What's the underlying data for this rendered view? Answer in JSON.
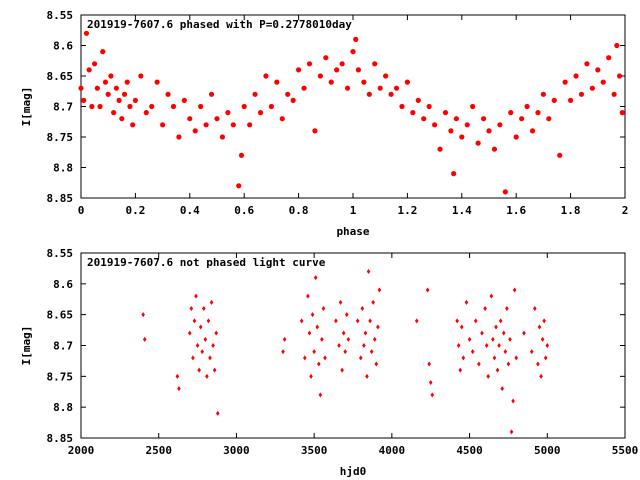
{
  "colors": {
    "points": "#ff0000",
    "axes": "#000000"
  },
  "chart_data": [
    {
      "type": "scatter",
      "title": "201919-7607.6 phased with P=0.2778010day",
      "xlabel": "phase",
      "ylabel": "I[mag]",
      "xlim": [
        0,
        2
      ],
      "ylim": [
        8.55,
        8.85
      ],
      "y_inverted": true,
      "xticks": [
        "0",
        "0.2",
        "0.4",
        "0.6",
        "0.8",
        "1",
        "1.2",
        "1.4",
        "1.6",
        "1.8",
        "2"
      ],
      "yticks": [
        "8.55",
        "8.6",
        "8.65",
        "8.7",
        "8.75",
        "8.8",
        "8.85"
      ],
      "grid": false,
      "marker": "filled-circle",
      "points": [
        [
          0.0,
          8.67
        ],
        [
          0.01,
          8.69
        ],
        [
          0.02,
          8.58
        ],
        [
          0.03,
          8.64
        ],
        [
          0.04,
          8.7
        ],
        [
          0.05,
          8.63
        ],
        [
          0.06,
          8.67
        ],
        [
          0.07,
          8.7
        ],
        [
          0.08,
          8.61
        ],
        [
          0.09,
          8.66
        ],
        [
          0.1,
          8.68
        ],
        [
          0.11,
          8.65
        ],
        [
          0.12,
          8.71
        ],
        [
          0.13,
          8.67
        ],
        [
          0.14,
          8.69
        ],
        [
          0.15,
          8.72
        ],
        [
          0.16,
          8.68
        ],
        [
          0.17,
          8.66
        ],
        [
          0.18,
          8.7
        ],
        [
          0.19,
          8.73
        ],
        [
          0.2,
          8.69
        ],
        [
          0.22,
          8.65
        ],
        [
          0.24,
          8.71
        ],
        [
          0.26,
          8.7
        ],
        [
          0.28,
          8.66
        ],
        [
          0.3,
          8.73
        ],
        [
          0.32,
          8.68
        ],
        [
          0.34,
          8.7
        ],
        [
          0.36,
          8.75
        ],
        [
          0.38,
          8.69
        ],
        [
          0.4,
          8.72
        ],
        [
          0.42,
          8.74
        ],
        [
          0.44,
          8.7
        ],
        [
          0.46,
          8.73
        ],
        [
          0.48,
          8.68
        ],
        [
          0.5,
          8.72
        ],
        [
          0.52,
          8.75
        ],
        [
          0.54,
          8.71
        ],
        [
          0.56,
          8.73
        ],
        [
          0.58,
          8.83
        ],
        [
          0.59,
          8.78
        ],
        [
          0.6,
          8.7
        ],
        [
          0.62,
          8.73
        ],
        [
          0.64,
          8.68
        ],
        [
          0.66,
          8.71
        ],
        [
          0.68,
          8.65
        ],
        [
          0.7,
          8.7
        ],
        [
          0.72,
          8.66
        ],
        [
          0.74,
          8.72
        ],
        [
          0.76,
          8.68
        ],
        [
          0.78,
          8.69
        ],
        [
          0.8,
          8.64
        ],
        [
          0.82,
          8.67
        ],
        [
          0.84,
          8.63
        ],
        [
          0.86,
          8.74
        ],
        [
          0.88,
          8.65
        ],
        [
          0.9,
          8.62
        ],
        [
          0.92,
          8.66
        ],
        [
          0.94,
          8.64
        ],
        [
          0.96,
          8.63
        ],
        [
          0.98,
          8.67
        ],
        [
          1.0,
          8.61
        ],
        [
          1.01,
          8.59
        ],
        [
          1.02,
          8.64
        ],
        [
          1.04,
          8.66
        ],
        [
          1.06,
          8.68
        ],
        [
          1.08,
          8.63
        ],
        [
          1.1,
          8.67
        ],
        [
          1.12,
          8.65
        ],
        [
          1.14,
          8.68
        ],
        [
          1.16,
          8.67
        ],
        [
          1.18,
          8.7
        ],
        [
          1.2,
          8.66
        ],
        [
          1.22,
          8.71
        ],
        [
          1.24,
          8.69
        ],
        [
          1.26,
          8.72
        ],
        [
          1.28,
          8.7
        ],
        [
          1.3,
          8.73
        ],
        [
          1.32,
          8.77
        ],
        [
          1.34,
          8.71
        ],
        [
          1.36,
          8.74
        ],
        [
          1.37,
          8.81
        ],
        [
          1.38,
          8.72
        ],
        [
          1.4,
          8.75
        ],
        [
          1.42,
          8.73
        ],
        [
          1.44,
          8.7
        ],
        [
          1.46,
          8.76
        ],
        [
          1.48,
          8.72
        ],
        [
          1.5,
          8.74
        ],
        [
          1.52,
          8.77
        ],
        [
          1.54,
          8.73
        ],
        [
          1.56,
          8.84
        ],
        [
          1.58,
          8.71
        ],
        [
          1.6,
          8.75
        ],
        [
          1.62,
          8.72
        ],
        [
          1.64,
          8.7
        ],
        [
          1.66,
          8.74
        ],
        [
          1.68,
          8.71
        ],
        [
          1.7,
          8.68
        ],
        [
          1.72,
          8.72
        ],
        [
          1.74,
          8.69
        ],
        [
          1.76,
          8.78
        ],
        [
          1.78,
          8.66
        ],
        [
          1.8,
          8.69
        ],
        [
          1.82,
          8.65
        ],
        [
          1.84,
          8.68
        ],
        [
          1.86,
          8.63
        ],
        [
          1.88,
          8.67
        ],
        [
          1.9,
          8.64
        ],
        [
          1.92,
          8.66
        ],
        [
          1.94,
          8.62
        ],
        [
          1.96,
          8.68
        ],
        [
          1.97,
          8.6
        ],
        [
          1.98,
          8.65
        ],
        [
          1.99,
          8.71
        ]
      ]
    },
    {
      "type": "scatter",
      "title": "201919-7607.6 not phased light curve",
      "xlabel": "hjd0",
      "ylabel": "I[mag]",
      "xlim": [
        2000,
        5500
      ],
      "ylim": [
        8.55,
        8.85
      ],
      "y_inverted": true,
      "xticks": [
        "2000",
        "2500",
        "3000",
        "3500",
        "4000",
        "4500",
        "5000",
        "5500"
      ],
      "yticks": [
        "8.55",
        "8.6",
        "8.65",
        "8.7",
        "8.75",
        "8.8",
        "8.85"
      ],
      "grid": false,
      "marker": "diamond",
      "points": [
        [
          2400,
          8.65
        ],
        [
          2410,
          8.69
        ],
        [
          2620,
          8.75
        ],
        [
          2630,
          8.77
        ],
        [
          2700,
          8.68
        ],
        [
          2710,
          8.64
        ],
        [
          2720,
          8.72
        ],
        [
          2730,
          8.66
        ],
        [
          2740,
          8.62
        ],
        [
          2750,
          8.7
        ],
        [
          2760,
          8.74
        ],
        [
          2770,
          8.67
        ],
        [
          2780,
          8.71
        ],
        [
          2790,
          8.64
        ],
        [
          2800,
          8.69
        ],
        [
          2810,
          8.75
        ],
        [
          2820,
          8.66
        ],
        [
          2830,
          8.72
        ],
        [
          2840,
          8.63
        ],
        [
          2850,
          8.7
        ],
        [
          2860,
          8.74
        ],
        [
          2870,
          8.68
        ],
        [
          2880,
          8.81
        ],
        [
          3300,
          8.71
        ],
        [
          3310,
          8.69
        ],
        [
          3420,
          8.66
        ],
        [
          3440,
          8.72
        ],
        [
          3460,
          8.62
        ],
        [
          3470,
          8.68
        ],
        [
          3480,
          8.75
        ],
        [
          3490,
          8.65
        ],
        [
          3500,
          8.71
        ],
        [
          3510,
          8.59
        ],
        [
          3520,
          8.67
        ],
        [
          3530,
          8.73
        ],
        [
          3540,
          8.78
        ],
        [
          3550,
          8.69
        ],
        [
          3560,
          8.64
        ],
        [
          3570,
          8.72
        ],
        [
          3640,
          8.66
        ],
        [
          3660,
          8.7
        ],
        [
          3670,
          8.63
        ],
        [
          3680,
          8.74
        ],
        [
          3690,
          8.68
        ],
        [
          3700,
          8.71
        ],
        [
          3710,
          8.65
        ],
        [
          3720,
          8.69
        ],
        [
          3780,
          8.66
        ],
        [
          3800,
          8.72
        ],
        [
          3810,
          8.64
        ],
        [
          3820,
          8.7
        ],
        [
          3830,
          8.68
        ],
        [
          3840,
          8.75
        ],
        [
          3850,
          8.58
        ],
        [
          3860,
          8.66
        ],
        [
          3870,
          8.71
        ],
        [
          3880,
          8.63
        ],
        [
          3890,
          8.69
        ],
        [
          3900,
          8.73
        ],
        [
          3910,
          8.67
        ],
        [
          3920,
          8.61
        ],
        [
          4160,
          8.66
        ],
        [
          4230,
          8.61
        ],
        [
          4240,
          8.73
        ],
        [
          4250,
          8.76
        ],
        [
          4260,
          8.78
        ],
        [
          4420,
          8.66
        ],
        [
          4430,
          8.7
        ],
        [
          4440,
          8.74
        ],
        [
          4450,
          8.67
        ],
        [
          4460,
          8.72
        ],
        [
          4480,
          8.63
        ],
        [
          4500,
          8.69
        ],
        [
          4520,
          8.71
        ],
        [
          4540,
          8.66
        ],
        [
          4560,
          8.73
        ],
        [
          4580,
          8.68
        ],
        [
          4600,
          8.64
        ],
        [
          4610,
          8.7
        ],
        [
          4620,
          8.75
        ],
        [
          4640,
          8.62
        ],
        [
          4650,
          8.69
        ],
        [
          4660,
          8.72
        ],
        [
          4670,
          8.67
        ],
        [
          4680,
          8.74
        ],
        [
          4690,
          8.7
        ],
        [
          4700,
          8.66
        ],
        [
          4710,
          8.77
        ],
        [
          4720,
          8.68
        ],
        [
          4730,
          8.71
        ],
        [
          4740,
          8.64
        ],
        [
          4750,
          8.73
        ],
        [
          4760,
          8.69
        ],
        [
          4770,
          8.84
        ],
        [
          4780,
          8.79
        ],
        [
          4790,
          8.61
        ],
        [
          4800,
          8.72
        ],
        [
          4850,
          8.68
        ],
        [
          4900,
          8.71
        ],
        [
          4920,
          8.64
        ],
        [
          4940,
          8.73
        ],
        [
          4950,
          8.67
        ],
        [
          4960,
          8.75
        ],
        [
          4970,
          8.69
        ],
        [
          4980,
          8.66
        ],
        [
          4990,
          8.72
        ],
        [
          5000,
          8.7
        ]
      ]
    }
  ]
}
